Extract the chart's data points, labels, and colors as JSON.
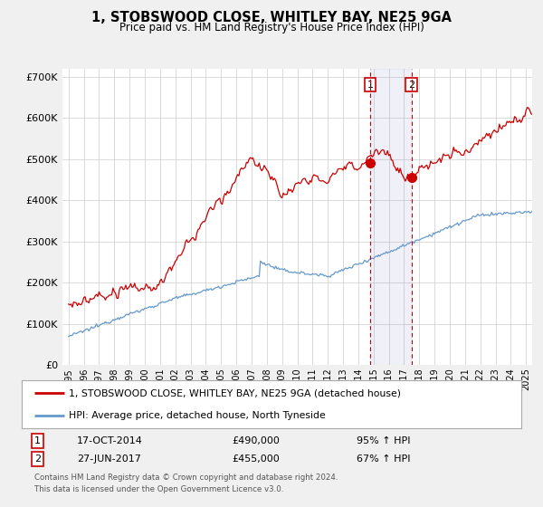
{
  "title": "1, STOBSWOOD CLOSE, WHITLEY BAY, NE25 9GA",
  "subtitle": "Price paid vs. HM Land Registry's House Price Index (HPI)",
  "red_label": "1, STOBSWOOD CLOSE, WHITLEY BAY, NE25 9GA (detached house)",
  "blue_label": "HPI: Average price, detached house, North Tyneside",
  "transaction1_label": "1",
  "transaction1_date": "17-OCT-2014",
  "transaction1_price": "£490,000",
  "transaction1_hpi": "95% ↑ HPI",
  "transaction2_label": "2",
  "transaction2_date": "27-JUN-2017",
  "transaction2_price": "£455,000",
  "transaction2_hpi": "67% ↑ HPI",
  "footnote1": "Contains HM Land Registry data © Crown copyright and database right 2024.",
  "footnote2": "This data is licensed under the Open Government Licence v3.0.",
  "ylim": [
    0,
    720000
  ],
  "yticks": [
    0,
    100000,
    200000,
    300000,
    400000,
    500000,
    600000,
    700000
  ],
  "ytick_labels": [
    "£0",
    "£100K",
    "£200K",
    "£300K",
    "£400K",
    "£500K",
    "£600K",
    "£700K"
  ],
  "background_color": "#f0f0f0",
  "plot_bg_color": "#ffffff",
  "red_color": "#cc0000",
  "blue_color": "#6699cc",
  "transaction1_x": 2014.79,
  "transaction2_x": 2017.49,
  "transaction1_y": 490000,
  "transaction2_y": 455000,
  "shaded_x1": 2014.79,
  "shaded_x2": 2017.49,
  "xmin": 1994.6,
  "xmax": 2025.4
}
